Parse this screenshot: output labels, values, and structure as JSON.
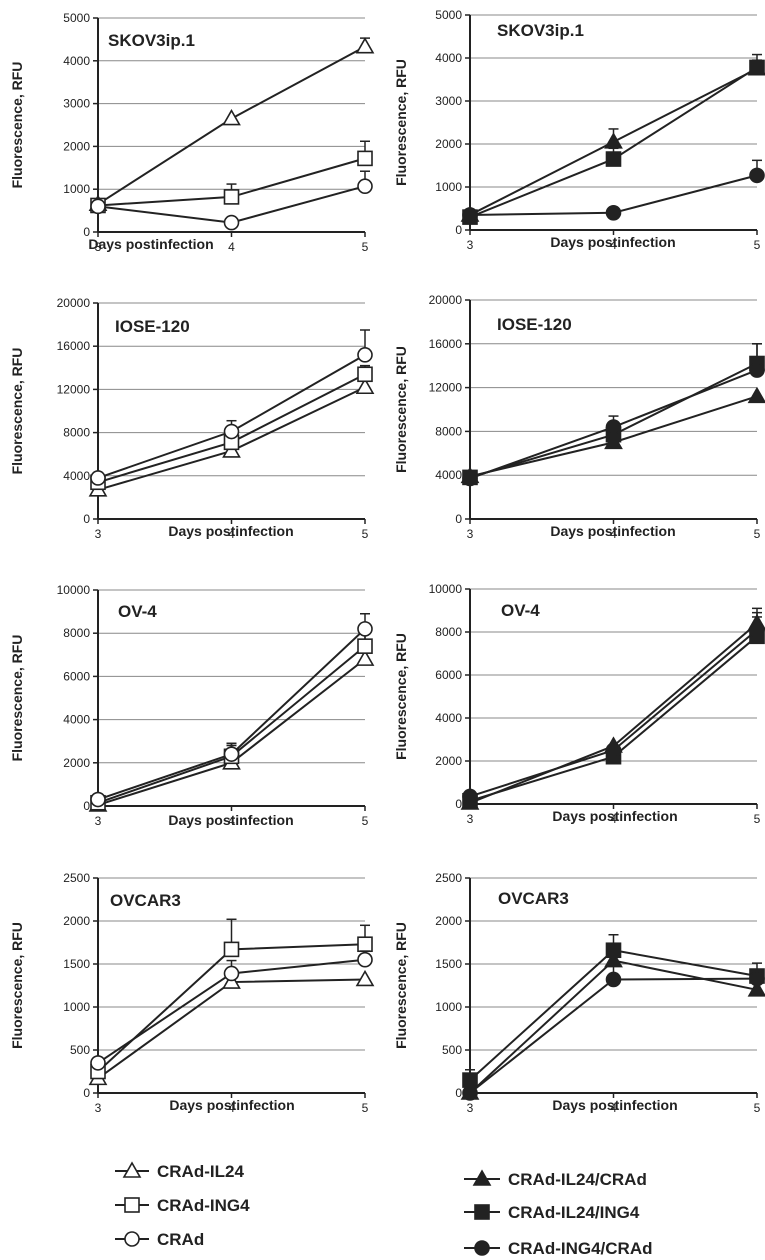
{
  "chart_data": [
    {
      "type": "line",
      "title": "SKOV3ip.1",
      "xlabel": "Days postinfection",
      "ylabel": "Fluorescence, RFU",
      "x": [
        3,
        4,
        5
      ],
      "xticks": [
        "3",
        "4",
        "5"
      ],
      "ylim": [
        0,
        5000
      ],
      "yticks": [
        "0",
        "1000",
        "2000",
        "3000",
        "4000",
        "5000"
      ],
      "grid": "horizontal",
      "series": [
        {
          "name": "CRAd-IL24",
          "marker": "triangle",
          "fill": "open",
          "values": [
            650,
            2650,
            4330
          ],
          "errors": [
            0,
            0,
            200
          ]
        },
        {
          "name": "CRAd-ING4",
          "marker": "square",
          "fill": "open",
          "values": [
            620,
            820,
            1720
          ],
          "errors": [
            0,
            300,
            400
          ]
        },
        {
          "name": "CRAd",
          "marker": "circle",
          "fill": "open",
          "values": [
            600,
            220,
            1070
          ],
          "errors": [
            0,
            0,
            350
          ]
        }
      ]
    },
    {
      "type": "line",
      "title": "SKOV3ip.1",
      "xlabel": "Days postinfection",
      "ylabel": "Fluorescence, RFU",
      "x": [
        3,
        4,
        5
      ],
      "xticks": [
        "3",
        "4",
        "5"
      ],
      "ylim": [
        0,
        5000
      ],
      "yticks": [
        "0",
        "1000",
        "2000",
        "3000",
        "4000",
        "5000"
      ],
      "grid": "horizontal",
      "series": [
        {
          "name": "CRAd-IL24/CRAd",
          "marker": "triangle",
          "fill": "filled",
          "values": [
            350,
            2050,
            3750
          ],
          "errors": [
            0,
            300,
            200
          ]
        },
        {
          "name": "CRAd-IL24/ING4",
          "marker": "square",
          "fill": "filled",
          "values": [
            300,
            1650,
            3780
          ],
          "errors": [
            0,
            250,
            300
          ]
        },
        {
          "name": "CRAd-ING4/CRAd",
          "marker": "circle",
          "fill": "filled",
          "values": [
            350,
            400,
            1270
          ],
          "errors": [
            0,
            0,
            350
          ]
        }
      ]
    },
    {
      "type": "line",
      "title": "IOSE-120",
      "xlabel": "Days postinfection",
      "ylabel": "Fluorescence, RFU",
      "x": [
        3,
        4,
        5
      ],
      "xticks": [
        "3",
        "4",
        "5"
      ],
      "ylim": [
        0,
        20000
      ],
      "yticks": [
        "0",
        "4000",
        "8000",
        "12000",
        "16000",
        "20000"
      ],
      "grid": "horizontal",
      "series": [
        {
          "name": "CRAd-IL24",
          "marker": "triangle",
          "fill": "open",
          "values": [
            2700,
            6300,
            12200
          ],
          "errors": [
            0,
            0,
            0
          ]
        },
        {
          "name": "CRAd-ING4",
          "marker": "square",
          "fill": "open",
          "values": [
            3400,
            7100,
            13400
          ],
          "errors": [
            0,
            800,
            800
          ]
        },
        {
          "name": "CRAd",
          "marker": "circle",
          "fill": "open",
          "values": [
            3800,
            8100,
            15200
          ],
          "errors": [
            0,
            1000,
            2300
          ]
        }
      ]
    },
    {
      "type": "line",
      "title": "IOSE-120",
      "xlabel": "Days postinfection",
      "ylabel": "Fluorescence, RFU",
      "x": [
        3,
        4,
        5
      ],
      "xticks": [
        "3",
        "4",
        "5"
      ],
      "ylim": [
        0,
        20000
      ],
      "yticks": [
        "0",
        "4000",
        "8000",
        "12000",
        "16000",
        "20000"
      ],
      "grid": "horizontal",
      "series": [
        {
          "name": "CRAd-IL24/CRAd",
          "marker": "triangle",
          "fill": "filled",
          "values": [
            3900,
            7000,
            11200
          ],
          "errors": [
            0,
            0,
            0
          ]
        },
        {
          "name": "CRAd-IL24/ING4",
          "marker": "square",
          "fill": "filled",
          "values": [
            3800,
            7700,
            14200
          ],
          "errors": [
            0,
            600,
            1800
          ]
        },
        {
          "name": "CRAd-ING4/CRAd",
          "marker": "circle",
          "fill": "filled",
          "values": [
            3700,
            8400,
            13600
          ],
          "errors": [
            0,
            1000,
            2400
          ]
        }
      ]
    },
    {
      "type": "line",
      "title": "OV-4",
      "xlabel": "Days postinfection",
      "ylabel": "Fluorescence, RFU",
      "x": [
        3,
        4,
        5
      ],
      "xticks": [
        "3",
        "4",
        "5"
      ],
      "ylim": [
        0,
        10000
      ],
      "yticks": [
        "0",
        "2000",
        "4000",
        "6000",
        "8000",
        "10000"
      ],
      "grid": "horizontal",
      "series": [
        {
          "name": "CRAd-IL24",
          "marker": "triangle",
          "fill": "open",
          "values": [
            50,
            2000,
            6800
          ],
          "errors": [
            0,
            800,
            1600
          ]
        },
        {
          "name": "CRAd-ING4",
          "marker": "square",
          "fill": "open",
          "values": [
            150,
            2300,
            7400
          ],
          "errors": [
            0,
            600,
            1000
          ]
        },
        {
          "name": "CRAd",
          "marker": "circle",
          "fill": "open",
          "values": [
            300,
            2400,
            8200
          ],
          "errors": [
            0,
            500,
            700
          ]
        }
      ]
    },
    {
      "type": "line",
      "title": "OV-4",
      "xlabel": "Days postinfection",
      "ylabel": "Fluorescence, RFU",
      "x": [
        3,
        4,
        5
      ],
      "xticks": [
        "3",
        "4",
        "5"
      ],
      "ylim": [
        0,
        10000
      ],
      "yticks": [
        "0",
        "2000",
        "4000",
        "6000",
        "8000",
        "10000"
      ],
      "grid": "horizontal",
      "series": [
        {
          "name": "CRAd-IL24/CRAd",
          "marker": "triangle",
          "fill": "filled",
          "values": [
            50,
            2700,
            8400
          ],
          "errors": [
            0,
            0,
            700
          ]
        },
        {
          "name": "CRAd-IL24/ING4",
          "marker": "square",
          "fill": "filled",
          "values": [
            150,
            2200,
            7800
          ],
          "errors": [
            0,
            0,
            900
          ]
        },
        {
          "name": "CRAd-ING4/CRAd",
          "marker": "circle",
          "fill": "filled",
          "values": [
            350,
            2500,
            8100
          ],
          "errors": [
            0,
            0,
            800
          ]
        }
      ]
    },
    {
      "type": "line",
      "title": "OVCAR3",
      "xlabel": "Days postinfection",
      "ylabel": "Fluorescence, RFU",
      "x": [
        3,
        4,
        5
      ],
      "xticks": [
        "3",
        "4",
        "5"
      ],
      "ylim": [
        0,
        2500
      ],
      "yticks": [
        "0",
        "500",
        "1000",
        "1500",
        "2000",
        "2500"
      ],
      "grid": "horizontal",
      "series": [
        {
          "name": "CRAd-IL24",
          "marker": "triangle",
          "fill": "open",
          "values": [
            170,
            1290,
            1320
          ],
          "errors": [
            0,
            0,
            0
          ]
        },
        {
          "name": "CRAd-ING4",
          "marker": "square",
          "fill": "open",
          "values": [
            250,
            1670,
            1730
          ],
          "errors": [
            0,
            350,
            220
          ]
        },
        {
          "name": "CRAd",
          "marker": "circle",
          "fill": "open",
          "values": [
            350,
            1390,
            1550
          ],
          "errors": [
            0,
            150,
            100
          ]
        }
      ]
    },
    {
      "type": "line",
      "title": "OVCAR3",
      "xlabel": "Days postinfection",
      "ylabel": "Fluorescence, RFU",
      "x": [
        3,
        4,
        5
      ],
      "xticks": [
        "3",
        "4",
        "5"
      ],
      "ylim": [
        0,
        2500
      ],
      "yticks": [
        "0",
        "500",
        "1000",
        "1500",
        "2000",
        "2500"
      ],
      "grid": "horizontal",
      "series": [
        {
          "name": "CRAd-IL24/CRAd",
          "marker": "triangle",
          "fill": "filled",
          "values": [
            0,
            1540,
            1200
          ],
          "errors": [
            0,
            0,
            100
          ]
        },
        {
          "name": "CRAd-IL24/ING4",
          "marker": "square",
          "fill": "filled",
          "values": [
            150,
            1660,
            1360
          ],
          "errors": [
            120,
            180,
            150
          ]
        },
        {
          "name": "CRAd-ING4/CRAd",
          "marker": "circle",
          "fill": "filled",
          "values": [
            0,
            1320,
            1330
          ],
          "errors": [
            0,
            180,
            0
          ]
        }
      ]
    }
  ],
  "legend": {
    "placement": "bottom",
    "left": [
      {
        "label": "CRAd-IL24",
        "marker": "triangle",
        "fill": "open"
      },
      {
        "label": "CRAd-ING4",
        "marker": "square",
        "fill": "open"
      },
      {
        "label": "CRAd",
        "marker": "circle",
        "fill": "open"
      }
    ],
    "right": [
      {
        "label": "CRAd-IL24/CRAd",
        "marker": "triangle",
        "fill": "filled"
      },
      {
        "label": "CRAd-IL24/ING4",
        "marker": "square",
        "fill": "filled"
      },
      {
        "label": "CRAd-ING4/CRAd",
        "marker": "circle",
        "fill": "filled"
      }
    ]
  },
  "colors": {
    "ink": "#222222",
    "grid": "#888888",
    "paper": "#ffffff"
  }
}
